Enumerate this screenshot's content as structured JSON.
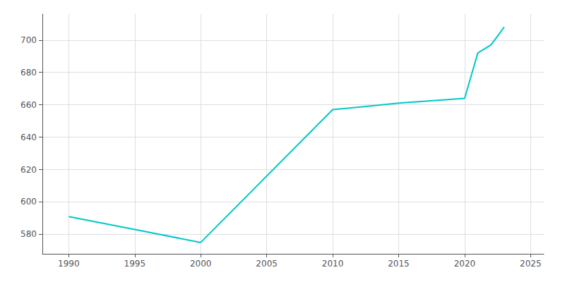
{
  "chart_data": {
    "type": "line",
    "x": [
      1990,
      1995,
      2000,
      2010,
      2015,
      2020,
      2021,
      2022,
      2023
    ],
    "values": [
      591,
      583,
      575,
      657,
      661,
      664,
      692,
      697,
      708
    ],
    "color": "#00C8C8",
    "xlim": [
      1988,
      2026
    ],
    "ylim": [
      568,
      716
    ],
    "xticks": [
      1990,
      1995,
      2000,
      2005,
      2010,
      2015,
      2020,
      2025
    ],
    "yticks": [
      580,
      600,
      620,
      640,
      660,
      680,
      700
    ],
    "grid": true
  }
}
